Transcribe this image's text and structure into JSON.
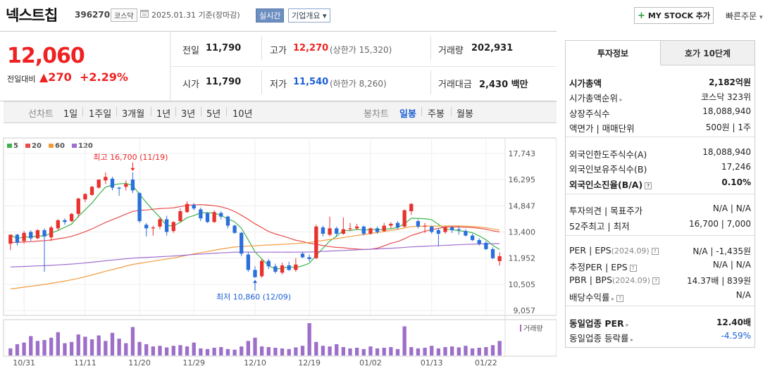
{
  "header": {
    "name": "넥스트칩",
    "code": "396270",
    "market": "코스닥",
    "date": "2025.01.31  기준(장마감)",
    "realtime": "실시간",
    "overview": "기업개요 ▾",
    "mystock": "MY STOCK 추가",
    "quick_order": "빠른주문"
  },
  "price": {
    "current": "12,060",
    "change_label": "전일대비",
    "change_amount": "▲270",
    "change_pct": "+2.29%"
  },
  "quote": {
    "prev_label": "전일",
    "prev": "11,790",
    "high_label": "고가",
    "high": "12,270",
    "upper_limit": "(상한가 15,320)",
    "volume_label": "거래량",
    "volume": "202,931",
    "open_label": "시가",
    "open": "11,790",
    "low_label": "저가",
    "low": "11,540",
    "lower_limit": "(하한가 8,260)",
    "amount_label": "거래대금",
    "amount": "2,430 백만"
  },
  "periods": {
    "line_label": "선차트",
    "line_items": [
      "1일",
      "1주일",
      "3개월",
      "1년",
      "3년",
      "5년",
      "10년"
    ],
    "candle_label": "봉차트",
    "candle_items": [
      "일봉",
      "주봉",
      "월봉"
    ],
    "active_candle": "일봉"
  },
  "legend": [
    {
      "label": "5",
      "color": "#3cb44b"
    },
    {
      "label": "20",
      "color": "#e84c4c"
    },
    {
      "label": "60",
      "color": "#f39c3c"
    },
    {
      "label": "120",
      "color": "#a070d0"
    }
  ],
  "chart_data": {
    "type": "candlestick",
    "y_ticks": [
      "17,743",
      "16,295",
      "14,847",
      "13,400",
      "11,952",
      "10,505",
      "9,057"
    ],
    "x_ticks": [
      "10/31",
      "11/11",
      "11/20",
      "11/29",
      "12/10",
      "12/19",
      "01/02",
      "01/13",
      "01/22"
    ],
    "high_annotation": "최고 16,700 (11/19)",
    "low_annotation": "최저 10,860 (12/09)",
    "volume_label": "거래량",
    "candles": [
      {
        "o": 12750,
        "c": 13250,
        "h": 13250,
        "l": 12400
      },
      {
        "o": 13250,
        "c": 12800,
        "h": 13300,
        "l": 12650
      },
      {
        "o": 12900,
        "c": 13350,
        "h": 13450,
        "l": 12750
      },
      {
        "o": 13400,
        "c": 13050,
        "h": 13500,
        "l": 12900
      },
      {
        "o": 13050,
        "c": 13500,
        "h": 13550,
        "l": 13000
      },
      {
        "o": 13500,
        "c": 13150,
        "h": 13600,
        "l": 11200
      },
      {
        "o": 13100,
        "c": 13650,
        "h": 13750,
        "l": 12900
      },
      {
        "o": 13600,
        "c": 14050,
        "h": 14100,
        "l": 13500
      },
      {
        "o": 14050,
        "c": 13950,
        "h": 14150,
        "l": 13800
      },
      {
        "o": 14000,
        "c": 14400,
        "h": 14450,
        "l": 13950
      },
      {
        "o": 14400,
        "c": 15250,
        "h": 15300,
        "l": 14200
      },
      {
        "o": 15200,
        "c": 15500,
        "h": 15550,
        "l": 15050
      },
      {
        "o": 15450,
        "c": 15900,
        "h": 15950,
        "l": 15400
      },
      {
        "o": 15850,
        "c": 16300,
        "h": 16300,
        "l": 15800
      },
      {
        "o": 16250,
        "c": 16450,
        "h": 16700,
        "l": 16050
      },
      {
        "o": 16350,
        "c": 15850,
        "h": 16450,
        "l": 15700
      },
      {
        "o": 15850,
        "c": 15800,
        "h": 15900,
        "l": 15400
      },
      {
        "o": 15900,
        "c": 16050,
        "h": 16250,
        "l": 15700
      },
      {
        "o": 16300,
        "c": 15700,
        "h": 16700,
        "l": 15550
      },
      {
        "o": 15550,
        "c": 14000,
        "h": 15600,
        "l": 13900
      },
      {
        "o": 13800,
        "c": 13600,
        "h": 13900,
        "l": 13150
      },
      {
        "o": 13600,
        "c": 13650,
        "h": 13750,
        "l": 13200
      },
      {
        "o": 13700,
        "c": 14100,
        "h": 14200,
        "l": 13550
      },
      {
        "o": 14100,
        "c": 13400,
        "h": 14300,
        "l": 13200
      },
      {
        "o": 13450,
        "c": 13950,
        "h": 14000,
        "l": 13350
      },
      {
        "o": 14000,
        "c": 14550,
        "h": 14700,
        "l": 13950
      },
      {
        "o": 14500,
        "c": 14950,
        "h": 15100,
        "l": 14450
      },
      {
        "o": 14900,
        "c": 14700,
        "h": 15000,
        "l": 14600
      },
      {
        "o": 14650,
        "c": 14150,
        "h": 14750,
        "l": 14000
      },
      {
        "o": 14450,
        "c": 13950,
        "h": 14500,
        "l": 13900
      },
      {
        "o": 13950,
        "c": 14500,
        "h": 14600,
        "l": 13900
      },
      {
        "o": 14450,
        "c": 14250,
        "h": 14550,
        "l": 14100
      },
      {
        "o": 14250,
        "c": 13750,
        "h": 14300,
        "l": 13600
      },
      {
        "o": 13750,
        "c": 13350,
        "h": 13800,
        "l": 13300
      },
      {
        "o": 13350,
        "c": 12200,
        "h": 13400,
        "l": 12050
      },
      {
        "o": 12150,
        "c": 11300,
        "h": 12300,
        "l": 11200
      },
      {
        "o": 11300,
        "c": 10900,
        "h": 11500,
        "l": 10860
      },
      {
        "o": 10950,
        "c": 11800,
        "h": 11900,
        "l": 10860
      },
      {
        "o": 11800,
        "c": 11500,
        "h": 11900,
        "l": 11350
      },
      {
        "o": 11500,
        "c": 11200,
        "h": 11650,
        "l": 11100
      },
      {
        "o": 11150,
        "c": 11550,
        "h": 11700,
        "l": 11050
      },
      {
        "o": 11550,
        "c": 11300,
        "h": 11750,
        "l": 11250
      },
      {
        "o": 11300,
        "c": 11600,
        "h": 11950,
        "l": 11200
      },
      {
        "o": 12200,
        "c": 12000,
        "h": 12300,
        "l": 11950
      },
      {
        "o": 12000,
        "c": 11900,
        "h": 12150,
        "l": 11750
      },
      {
        "o": 11950,
        "c": 13700,
        "h": 13800,
        "l": 11900
      },
      {
        "o": 13650,
        "c": 13300,
        "h": 13750,
        "l": 13150
      },
      {
        "o": 13250,
        "c": 13600,
        "h": 14250,
        "l": 13150
      },
      {
        "o": 13600,
        "c": 13300,
        "h": 13700,
        "l": 13150
      },
      {
        "o": 13300,
        "c": 13550,
        "h": 14200,
        "l": 13250
      },
      {
        "o": 13550,
        "c": 13600,
        "h": 13900,
        "l": 13450
      },
      {
        "o": 13600,
        "c": 13700,
        "h": 13850,
        "l": 13500
      },
      {
        "o": 13700,
        "c": 13300,
        "h": 13750,
        "l": 13200
      },
      {
        "o": 13300,
        "c": 13600,
        "h": 13650,
        "l": 13250
      },
      {
        "o": 13600,
        "c": 13400,
        "h": 13700,
        "l": 13300
      },
      {
        "o": 13450,
        "c": 13750,
        "h": 13900,
        "l": 13400
      },
      {
        "o": 13750,
        "c": 13850,
        "h": 13950,
        "l": 13600
      },
      {
        "o": 13900,
        "c": 13650,
        "h": 14000,
        "l": 13550
      },
      {
        "o": 13700,
        "c": 14600,
        "h": 14650,
        "l": 13650
      },
      {
        "o": 14550,
        "c": 14950,
        "h": 15000,
        "l": 14350
      },
      {
        "o": 14000,
        "c": 13700,
        "h": 14100,
        "l": 13600
      },
      {
        "o": 13700,
        "c": 13750,
        "h": 13900,
        "l": 13350
      },
      {
        "o": 13700,
        "c": 13400,
        "h": 13750,
        "l": 13300
      },
      {
        "o": 13500,
        "c": 13300,
        "h": 13600,
        "l": 12600
      },
      {
        "o": 13400,
        "c": 13650,
        "h": 13700,
        "l": 13300
      },
      {
        "o": 13650,
        "c": 13500,
        "h": 13750,
        "l": 13350
      },
      {
        "o": 13550,
        "c": 13500,
        "h": 13700,
        "l": 13250
      },
      {
        "o": 13450,
        "c": 13200,
        "h": 13550,
        "l": 13150
      },
      {
        "o": 13200,
        "c": 12950,
        "h": 13300,
        "l": 12900
      },
      {
        "o": 12950,
        "c": 12750,
        "h": 13050,
        "l": 12650
      },
      {
        "o": 12800,
        "c": 12450,
        "h": 12900,
        "l": 12400
      },
      {
        "o": 12450,
        "c": 11950,
        "h": 12550,
        "l": 11900
      },
      {
        "o": 11790,
        "c": 12060,
        "h": 12270,
        "l": 11540
      }
    ],
    "volume": [
      22,
      35,
      40,
      60,
      45,
      48,
      55,
      72,
      38,
      42,
      65,
      58,
      50,
      62,
      45,
      70,
      52,
      38,
      88,
      42,
      35,
      28,
      30,
      25,
      30,
      32,
      28,
      40,
      22,
      20,
      24,
      26,
      20,
      18,
      28,
      45,
      55,
      28,
      26,
      24,
      22,
      20,
      25,
      30,
      100,
      42,
      30,
      28,
      35,
      26,
      22,
      24,
      20,
      28,
      22,
      24,
      26,
      20,
      90,
      26,
      22,
      24,
      30,
      22,
      26,
      28,
      25,
      30,
      22,
      24,
      26,
      32,
      45
    ]
  },
  "side": {
    "tab_info": "투자정보",
    "tab_hoga": "호가 10단계",
    "rows": [
      {
        "label": "시가총액",
        "value": "2,182억원"
      },
      {
        "label": "시가총액순위",
        "value": "코스닥 323위"
      },
      {
        "label": "상장주식수",
        "value": "18,088,940"
      },
      {
        "label": "액면가 | 매매단위",
        "value": "500원 | 1주"
      },
      {
        "label": "외국인한도주식수(A)",
        "value": "18,088,940"
      },
      {
        "label": "외국인보유주식수(B)",
        "value": "17,246"
      },
      {
        "label": "외국인소진율(B/A)",
        "value": "0.10%"
      },
      {
        "label": "투자의견 | 목표주가",
        "value": "N/A | N/A"
      },
      {
        "label": "52주최고 | 최저",
        "value": "16,700 | 7,000"
      },
      {
        "label": "PER | EPS",
        "sub": "(2024.09)",
        "value": "N/A | -1,435원"
      },
      {
        "label": "추정PER | EPS",
        "value": "N/A | N/A"
      },
      {
        "label": "PBR | BPS",
        "sub": "(2024.09)",
        "value": "14.37배 | 839원"
      },
      {
        "label": "배당수익률",
        "value": "N/A"
      },
      {
        "label": "동일업종 PER",
        "value": "12.40배"
      },
      {
        "label": "동일업종 등락률",
        "value": "-4.59%"
      }
    ]
  }
}
